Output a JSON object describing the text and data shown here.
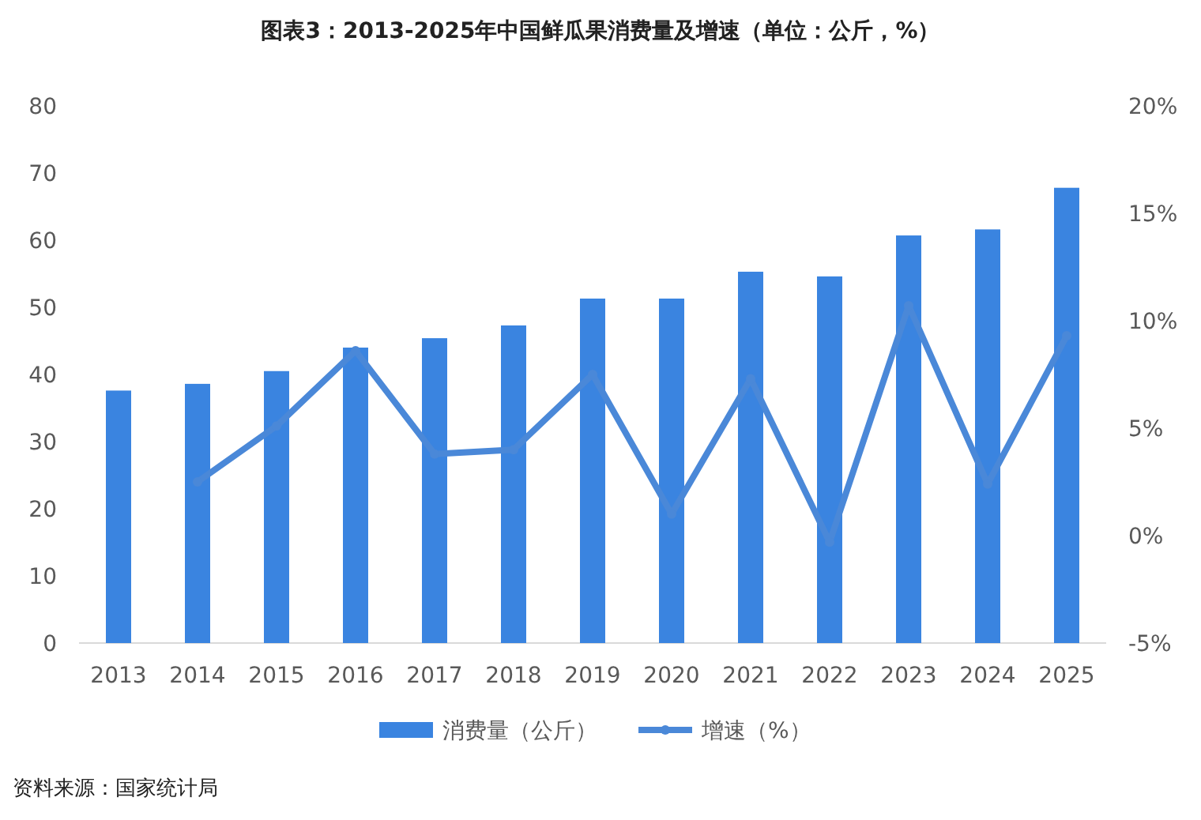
{
  "chart_data": {
    "type": "bar",
    "title": "图表3：2013-2025年中国鲜瓜果消费量及增速（单位：公斤，%）",
    "categories": [
      "2013",
      "2014",
      "2015",
      "2016",
      "2017",
      "2018",
      "2019",
      "2020",
      "2021",
      "2022",
      "2023",
      "2024",
      "2025"
    ],
    "series": [
      {
        "name": "消费量（公斤）",
        "color": "#3a84e0",
        "values": [
          37.6,
          38.6,
          40.5,
          44.0,
          45.4,
          47.3,
          51.3,
          51.3,
          55.3,
          54.6,
          60.7,
          61.6,
          67.8
        ]
      },
      {
        "name": "增速（%）",
        "type": "line",
        "axis": "y2",
        "color": "#4a88d8",
        "marker": "circle",
        "values": [
          null,
          2.5,
          5.1,
          8.6,
          3.8,
          4.0,
          7.5,
          1.0,
          7.3,
          -0.3,
          10.7,
          2.4,
          9.3
        ]
      }
    ],
    "ylim": [
      0,
      80
    ],
    "yticks": [
      0,
      10,
      20,
      30,
      40,
      50,
      60,
      70,
      80
    ],
    "y2lim": [
      -5,
      20
    ],
    "y2ticks": [
      {
        "value": -5,
        "label": "-5%"
      },
      {
        "value": 0,
        "label": "0%"
      },
      {
        "value": 5,
        "label": "5%"
      },
      {
        "value": 10,
        "label": "10%"
      },
      {
        "value": 15,
        "label": "15%"
      },
      {
        "value": 20,
        "label": "20%"
      }
    ],
    "grid": false,
    "legend": "bottom",
    "annotations": [
      "资料来源：国家统计局"
    ]
  }
}
